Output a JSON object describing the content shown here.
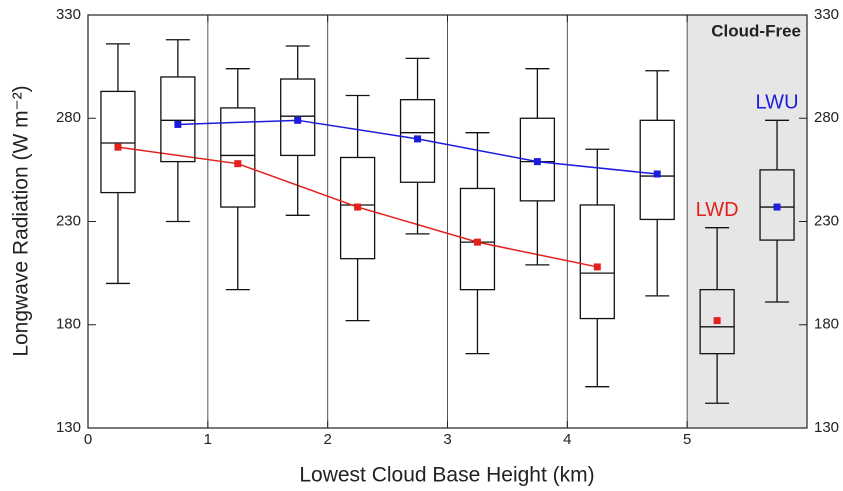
{
  "chart_data": {
    "type": "box",
    "x_label": "Lowest Cloud Base Height (km)",
    "y_label": "Longwave Radiation (W m⁻²)",
    "xlim": [
      0,
      6
    ],
    "xticks": [
      0,
      1,
      2,
      3,
      4,
      5
    ],
    "ylim": [
      130,
      330
    ],
    "yticks": [
      130,
      180,
      230,
      280,
      330
    ],
    "right_axis_ticks": true,
    "grid": "x",
    "shaded_region": {
      "xlim": [
        5,
        6
      ],
      "label": "Cloud-Free",
      "color": "#e6e6e6"
    },
    "series": [
      {
        "name": "LWD",
        "color": "#e3211c",
        "x": [
          0.25,
          1.25,
          2.25,
          3.25,
          4.25,
          5.25
        ],
        "whisker_low": [
          200,
          197,
          182,
          166,
          150,
          142
        ],
        "q1": [
          244,
          237,
          212,
          197,
          183,
          166
        ],
        "median": [
          268,
          262,
          238,
          220,
          205,
          179
        ],
        "q3": [
          293,
          285,
          261,
          246,
          238,
          197
        ],
        "whisker_high": [
          316,
          304,
          291,
          273,
          265,
          227
        ],
        "mean": [
          266,
          258,
          237,
          220,
          208,
          182
        ]
      },
      {
        "name": "LWU",
        "color": "#1c1cdc",
        "x": [
          0.75,
          1.75,
          2.75,
          3.75,
          4.75,
          5.75
        ],
        "whisker_low": [
          230,
          233,
          224,
          209,
          194,
          191
        ],
        "q1": [
          259,
          262,
          249,
          240,
          231,
          221
        ],
        "median": [
          279,
          281,
          273,
          259,
          252,
          237
        ],
        "q3": [
          300,
          299,
          289,
          280,
          279,
          255
        ],
        "whisker_high": [
          318,
          315,
          309,
          304,
          303,
          279
        ],
        "mean": [
          277,
          279,
          270,
          259,
          253,
          237
        ]
      }
    ]
  }
}
